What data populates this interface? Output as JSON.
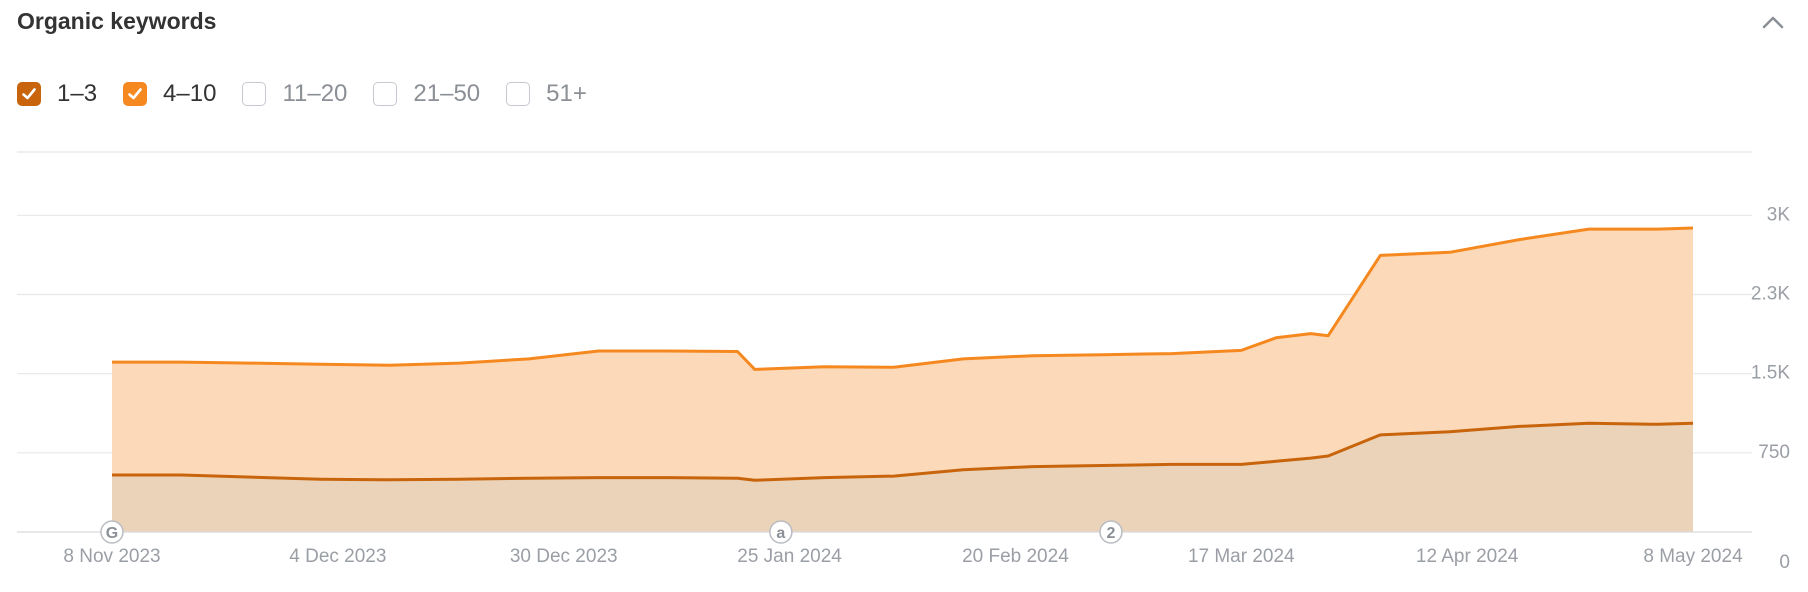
{
  "title": "Organic keywords",
  "filters": [
    {
      "label": "1–3",
      "checked": true,
      "color": "#c8650c"
    },
    {
      "label": "4–10",
      "checked": true,
      "color": "#f5891f"
    },
    {
      "label": "11–20",
      "checked": false
    },
    {
      "label": "21–50",
      "checked": false
    },
    {
      "label": "51+",
      "checked": false
    }
  ],
  "chart_data": {
    "type": "area",
    "stacked": true,
    "x_ticks": [
      "8 Nov 2023",
      "4 Dec 2023",
      "30 Dec 2023",
      "25 Jan 2024",
      "20 Feb 2024",
      "17 Mar 2024",
      "12 Apr 2024",
      "8 May 2024"
    ],
    "y_ticks": [
      "0",
      "750",
      "1.5K",
      "2.3K",
      "3K"
    ],
    "ylim": [
      0,
      3000
    ],
    "annotations": [
      {
        "label": "G",
        "x": "8 Nov 2023"
      },
      {
        "label": "a",
        "x": "24 Jan 2024"
      },
      {
        "label": "2",
        "x": "2 Mar 2024"
      }
    ],
    "series": [
      {
        "name": "1–3",
        "color": "#c8650c",
        "x": [
          "8 Nov 2023",
          "16 Nov 2023",
          "24 Nov 2023",
          "2 Dec 2023",
          "10 Dec 2023",
          "18 Dec 2023",
          "26 Dec 2023",
          "3 Jan 2024",
          "11 Jan 2024",
          "19 Jan 2024",
          "21 Jan 2024",
          "29 Jan 2024",
          "6 Feb 2024",
          "14 Feb 2024",
          "22 Feb 2024",
          "1 Mar 2024",
          "9 Mar 2024",
          "17 Mar 2024",
          "21 Mar 2024",
          "25 Mar 2024",
          "27 Mar 2024",
          "2 Apr 2024",
          "10 Apr 2024",
          "18 Apr 2024",
          "26 Apr 2024",
          "4 May 2024",
          "8 May 2024"
        ],
        "y": [
          540,
          540,
          520,
          500,
          495,
          500,
          510,
          515,
          515,
          510,
          490,
          515,
          530,
          590,
          620,
          630,
          640,
          640,
          670,
          700,
          720,
          920,
          950,
          1000,
          1030,
          1020,
          1030
        ]
      },
      {
        "name": "4–10",
        "color": "#f5891f",
        "x": [
          "8 Nov 2023",
          "16 Nov 2023",
          "24 Nov 2023",
          "2 Dec 2023",
          "10 Dec 2023",
          "18 Dec 2023",
          "26 Dec 2023",
          "3 Jan 2024",
          "11 Jan 2024",
          "19 Jan 2024",
          "21 Jan 2024",
          "29 Jan 2024",
          "6 Feb 2024",
          "14 Feb 2024",
          "22 Feb 2024",
          "1 Mar 2024",
          "9 Mar 2024",
          "17 Mar 2024",
          "21 Mar 2024",
          "25 Mar 2024",
          "27 Mar 2024",
          "2 Apr 2024",
          "10 Apr 2024",
          "18 Apr 2024",
          "26 Apr 2024",
          "4 May 2024",
          "8 May 2024"
        ],
        "y": [
          1070,
          1070,
          1080,
          1090,
          1085,
          1100,
          1130,
          1200,
          1200,
          1200,
          1050,
          1050,
          1030,
          1050,
          1050,
          1050,
          1050,
          1080,
          1170,
          1180,
          1140,
          1700,
          1700,
          1770,
          1840,
          1850,
          1850
        ]
      }
    ]
  }
}
